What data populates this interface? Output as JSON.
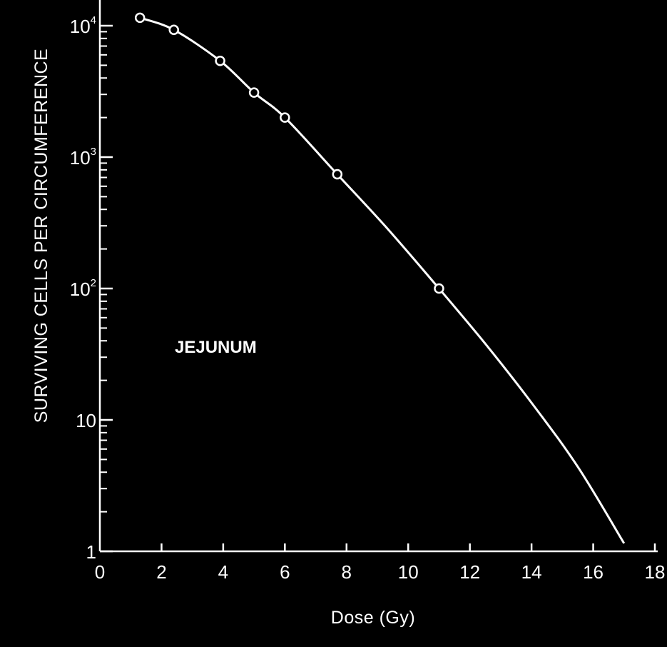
{
  "chart_data": {
    "type": "line",
    "title": "",
    "xlabel": "Dose (Gy)",
    "ylabel": "SURVIVING CELLS PER CIRCUMFERENCE",
    "annotation": "JEJUNUM",
    "x_ticks": [
      0,
      2,
      4,
      6,
      8,
      10,
      12,
      14,
      16,
      18
    ],
    "x_tick_labels": [
      "0",
      "2",
      "4",
      "6",
      "8",
      "10",
      "12",
      "14",
      "16",
      "18"
    ],
    "xlim": [
      0,
      18
    ],
    "y_scale": "log",
    "ylim": [
      1,
      15000
    ],
    "y_ticks": [
      {
        "value": 10000,
        "base": "10",
        "exp": "4"
      },
      {
        "value": 1000,
        "base": "10",
        "exp": "3"
      },
      {
        "value": 100,
        "base": "10",
        "exp": "2"
      },
      {
        "value": 10,
        "base": "10",
        "exp": ""
      },
      {
        "value": 1,
        "base": "1",
        "exp": ""
      }
    ],
    "grid": false,
    "colors": {
      "background": "#000000",
      "foreground": "#ffffff"
    },
    "series": [
      {
        "markers": "open-circle",
        "points": [
          {
            "x": 1.3,
            "y": 11500
          },
          {
            "x": 2.4,
            "y": 9300
          },
          {
            "x": 3.9,
            "y": 5400
          },
          {
            "x": 5.0,
            "y": 3100
          },
          {
            "x": 6.0,
            "y": 2000
          },
          {
            "x": 7.7,
            "y": 740
          },
          {
            "x": 11.0,
            "y": 100
          }
        ],
        "curve": [
          {
            "x": 1.3,
            "y": 11500
          },
          {
            "x": 2.4,
            "y": 9300
          },
          {
            "x": 3.9,
            "y": 5400
          },
          {
            "x": 5.0,
            "y": 3100
          },
          {
            "x": 6.0,
            "y": 2000
          },
          {
            "x": 7.7,
            "y": 740
          },
          {
            "x": 9.3,
            "y": 290
          },
          {
            "x": 11.0,
            "y": 100
          },
          {
            "x": 12.5,
            "y": 38
          },
          {
            "x": 14.0,
            "y": 13.5
          },
          {
            "x": 15.5,
            "y": 4.4
          },
          {
            "x": 17.0,
            "y": 1.15
          }
        ]
      }
    ]
  }
}
